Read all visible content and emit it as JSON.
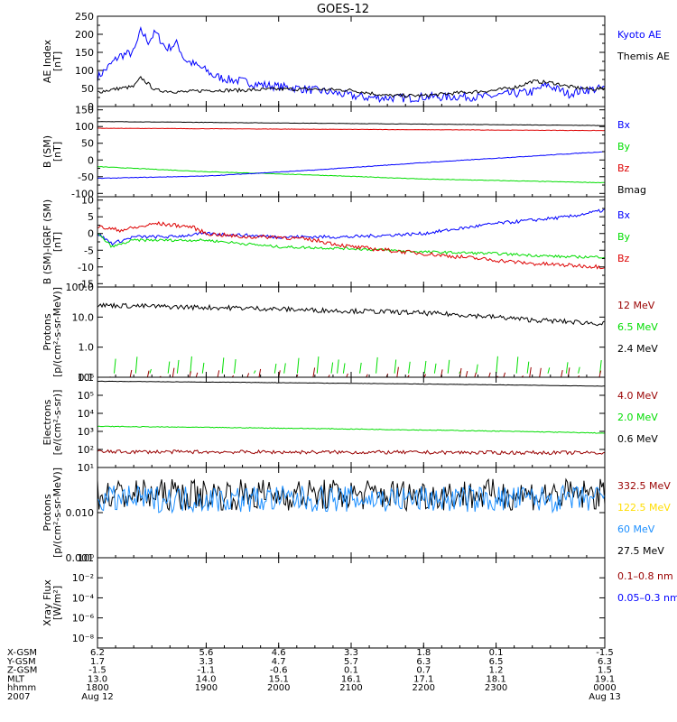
{
  "title": "GOES-12",
  "colors": {
    "black": "#000000",
    "blue": "#0000ff",
    "red": "#dd0000",
    "green": "#00dd00",
    "darkred": "#990000",
    "yellow": "#ffdd00",
    "cyan": "#1e90ff",
    "axis": "#000000"
  },
  "x_axis": {
    "tick_hours": [
      17.5,
      19,
      20,
      21,
      22,
      23,
      24.5
    ],
    "rows": [
      {
        "label": "X-GSM",
        "values": [
          "6.2",
          "5.6",
          "4.6",
          "3.3",
          "1.8",
          "0.1",
          "-1.5"
        ]
      },
      {
        "label": "Y-GSM",
        "values": [
          "1.7",
          "3.3",
          "4.7",
          "5.7",
          "6.3",
          "6.5",
          "6.3"
        ]
      },
      {
        "label": "Z-GSM",
        "values": [
          "-1.5",
          "-1.1",
          "-0.6",
          "0.1",
          "0.7",
          "1.2",
          "1.5"
        ]
      },
      {
        "label": "MLT",
        "values": [
          "13.0",
          "14.0",
          "15.1",
          "16.1",
          "17.1",
          "18.1",
          "19.1"
        ]
      },
      {
        "label": "hhmm",
        "values": [
          "1800",
          "1900",
          "2000",
          "2100",
          "2200",
          "2300",
          "0000"
        ]
      },
      {
        "label": "2007",
        "values": [
          "Aug 12",
          "",
          "",
          "",
          "",
          "",
          "Aug 13"
        ]
      }
    ]
  },
  "chart_data": [
    {
      "type": "line",
      "panel": "ae",
      "ylabel": "AE Index\n[nT]",
      "ylim": [
        0,
        250
      ],
      "yticks": [
        0,
        50,
        100,
        150,
        200,
        250
      ],
      "ticklabels": [
        "0",
        "50",
        "100",
        "150",
        "200",
        "250"
      ],
      "series": [
        {
          "name": "Kyoto AE",
          "color": "blue",
          "x": [
            17.5,
            17.7,
            17.8,
            18.0,
            18.1,
            18.2,
            18.3,
            18.45,
            18.6,
            18.7,
            18.85,
            19.0,
            19.1,
            19.3,
            19.5,
            19.7,
            20.0,
            20.3,
            20.5,
            20.7,
            21.0,
            21.2,
            21.5,
            21.8,
            22.0,
            22.3,
            22.5,
            22.8,
            23.0,
            23.2,
            23.5,
            23.7,
            24.0,
            24.2,
            24.5
          ],
          "y": [
            80,
            120,
            140,
            150,
            210,
            180,
            205,
            160,
            175,
            130,
            115,
            100,
            85,
            75,
            70,
            62,
            55,
            50,
            45,
            40,
            30,
            25,
            24,
            23,
            27,
            26,
            28,
            26,
            30,
            35,
            40,
            60,
            35,
            45,
            50
          ],
          "noise": 12
        },
        {
          "name": "Themis AE",
          "color": "black",
          "x": [
            17.5,
            17.8,
            18.0,
            18.1,
            18.3,
            18.7,
            19.0,
            19.5,
            20.0,
            20.5,
            21.0,
            21.5,
            22.0,
            22.5,
            23.0,
            23.3,
            23.5,
            23.8,
            24.0,
            24.3,
            24.5
          ],
          "y": [
            40,
            50,
            55,
            80,
            45,
            40,
            45,
            45,
            48,
            48,
            45,
            30,
            30,
            38,
            45,
            55,
            70,
            65,
            55,
            48,
            50
          ],
          "noise": 5
        }
      ],
      "legend": [
        {
          "text": "Kyoto AE",
          "color": "blue"
        },
        {
          "text": "Themis AE",
          "color": "black"
        }
      ]
    },
    {
      "type": "line",
      "panel": "bsm",
      "ylabel": "B (SM)\n[nT]",
      "ylim": [
        -110,
        160
      ],
      "yticks": [
        -100,
        -50,
        0,
        50,
        100,
        150
      ],
      "ticklabels": [
        "-100",
        "-50",
        "0",
        "50",
        "100",
        "150"
      ],
      "series": [
        {
          "name": "Bmag",
          "color": "black",
          "x": [
            17.5,
            24.5
          ],
          "y": [
            115,
            103
          ],
          "noise": 0.5
        },
        {
          "name": "Bz",
          "color": "red",
          "x": [
            17.5,
            24.5
          ],
          "y": [
            95,
            88
          ],
          "noise": 0.5
        },
        {
          "name": "By",
          "color": "green",
          "x": [
            17.5,
            19,
            20.5,
            22,
            24.5
          ],
          "y": [
            -20,
            -35,
            -45,
            -57,
            -68
          ],
          "noise": 0.8
        },
        {
          "name": "Bx",
          "color": "blue",
          "x": [
            17.5,
            19,
            20.5,
            22,
            24.5
          ],
          "y": [
            -55,
            -48,
            -30,
            -8,
            25
          ],
          "noise": 0.8
        }
      ],
      "legend": [
        {
          "text": "Bx",
          "color": "blue"
        },
        {
          "text": "By",
          "color": "green"
        },
        {
          "text": "Bz",
          "color": "red"
        },
        {
          "text": "Bmag",
          "color": "black"
        }
      ]
    },
    {
      "type": "line",
      "panel": "bdiff",
      "ylabel": "B (SM)-IGRF (SM)\n[nT]",
      "ylim": [
        -16,
        11
      ],
      "yticks": [
        -15,
        -10,
        -5,
        0,
        5,
        10
      ],
      "ticklabels": [
        "-15",
        "-10",
        "-5",
        "0",
        "5",
        "10"
      ],
      "series": [
        {
          "name": "Bx",
          "color": "blue",
          "x": [
            17.5,
            17.7,
            18.0,
            18.5,
            19.0,
            20.0,
            21.0,
            22.0,
            23.0,
            24.0,
            24.5
          ],
          "y": [
            0,
            -3,
            -1,
            -1,
            0,
            -1,
            -1,
            0,
            3,
            5,
            7
          ],
          "noise": 0.5
        },
        {
          "name": "By",
          "color": "green",
          "x": [
            17.5,
            17.7,
            18.0,
            18.5,
            19.0,
            20.0,
            21.0,
            22.0,
            23.0,
            24.0,
            24.5
          ],
          "y": [
            0,
            -4,
            -2,
            -2,
            -2,
            -4,
            -4.5,
            -5.5,
            -6,
            -7,
            -7
          ],
          "noise": 0.4
        },
        {
          "name": "Bz",
          "color": "red",
          "x": [
            17.5,
            17.8,
            18.1,
            18.3,
            18.8,
            19.0,
            19.5,
            20.0,
            20.5,
            21.0,
            21.5,
            22.0,
            22.5,
            23.0,
            23.5,
            24.0,
            24.5
          ],
          "y": [
            2,
            1,
            2,
            3,
            2,
            0,
            -1,
            -1,
            -2,
            -4,
            -5,
            -6,
            -7,
            -8,
            -9,
            -9.5,
            -10
          ],
          "noise": 0.6
        }
      ],
      "legend": [
        {
          "text": "Bx",
          "color": "blue"
        },
        {
          "text": "By",
          "color": "green"
        },
        {
          "text": "Bz",
          "color": "red"
        }
      ]
    },
    {
      "type": "line",
      "panel": "protons_low",
      "ylabel": "Protons\n[p/(cm²-s-sr-MeV)]",
      "ylim": [
        0.1,
        100
      ],
      "log": true,
      "yticks": [
        0.1,
        1,
        10,
        100
      ],
      "ticklabels": [
        "0.1",
        "1.0",
        "10.0",
        "100.0"
      ],
      "series": [
        {
          "name": "2.4 MeV",
          "color": "black",
          "x": [
            17.5,
            18.5,
            19.5,
            20.5,
            21.5,
            22.5,
            23.5,
            24.5
          ],
          "y": [
            25,
            22,
            20,
            17,
            15,
            12,
            8,
            6
          ],
          "noise": 0.08
        },
        {
          "name": "6.5 MeV",
          "color": "green",
          "sparse": true,
          "level": 0.15,
          "peak": 0.5
        },
        {
          "name": "12 MeV",
          "color": "darkred",
          "sparse": true,
          "level": 0.1,
          "peak": 0.22
        }
      ],
      "legend": [
        {
          "text": "12 MeV",
          "color": "darkred"
        },
        {
          "text": "6.5 MeV",
          "color": "green"
        },
        {
          "text": "2.4 MeV",
          "color": "black"
        }
      ]
    },
    {
      "type": "line",
      "panel": "electrons",
      "ylabel": "Electrons\n[e/(cm²-s-sr)]",
      "ylim": [
        10,
        1000000
      ],
      "log": true,
      "yticks": [
        10,
        100,
        1000,
        10000,
        100000,
        1000000
      ],
      "ticklabels": [
        "10¹",
        "10²",
        "10³",
        "10⁴",
        "10⁵",
        "10⁶"
      ],
      "series": [
        {
          "name": "0.6 MeV",
          "color": "black",
          "x": [
            17.5,
            24.5
          ],
          "y": [
            600000,
            320000
          ],
          "noise": 0.01
        },
        {
          "name": "2.0 MeV",
          "color": "green",
          "x": [
            17.5,
            24.5
          ],
          "y": [
            1900,
            800
          ],
          "noise": 0.02
        },
        {
          "name": "4.0 MeV",
          "color": "darkred",
          "x": [
            17.5,
            24.5
          ],
          "y": [
            75,
            65
          ],
          "noise": 0.1
        }
      ],
      "legend": [
        {
          "text": "4.0 MeV",
          "color": "darkred"
        },
        {
          "text": "2.0 MeV",
          "color": "green"
        },
        {
          "text": "0.6 MeV",
          "color": "black"
        }
      ]
    },
    {
      "type": "line",
      "panel": "protons_high",
      "ylabel": "Protons\n[p/(cm²-s-sr-MeV)]",
      "ylim": [
        0.001,
        0.1
      ],
      "log": true,
      "yticks": [
        0.001,
        0.01,
        0.1
      ],
      "ticklabels": [
        "0.001",
        "0.010",
        ""
      ],
      "series": [
        {
          "name": "27.5 MeV",
          "color": "black",
          "x": [
            17.5,
            24.5
          ],
          "y": [
            0.025,
            0.025
          ],
          "noise": 0.35
        },
        {
          "name": "60 MeV",
          "color": "cyan",
          "x": [
            17.5,
            24.5
          ],
          "y": [
            0.02,
            0.02
          ],
          "noise": 0.3
        }
      ],
      "legend": [
        {
          "text": "332.5 MeV",
          "color": "darkred"
        },
        {
          "text": "122.5 MeV",
          "color": "yellow"
        },
        {
          "text": "60 MeV",
          "color": "cyan"
        },
        {
          "text": "27.5 MeV",
          "color": "black"
        }
      ]
    },
    {
      "type": "line",
      "panel": "xray",
      "ylabel": "Xray Flux\n[W/m²]",
      "ylim": [
        1e-09,
        1
      ],
      "log": true,
      "yticks": [
        1e-08,
        1e-06,
        0.0001,
        0.01,
        1
      ],
      "ticklabels": [
        "10⁻⁸",
        "10⁻⁶",
        "10⁻⁴",
        "10⁻²",
        "10⁰"
      ],
      "series": [],
      "legend": [
        {
          "text": "0.1–0.8 nm",
          "color": "darkred"
        },
        {
          "text": "0.05–0.3 nm",
          "color": "blue"
        }
      ]
    }
  ]
}
